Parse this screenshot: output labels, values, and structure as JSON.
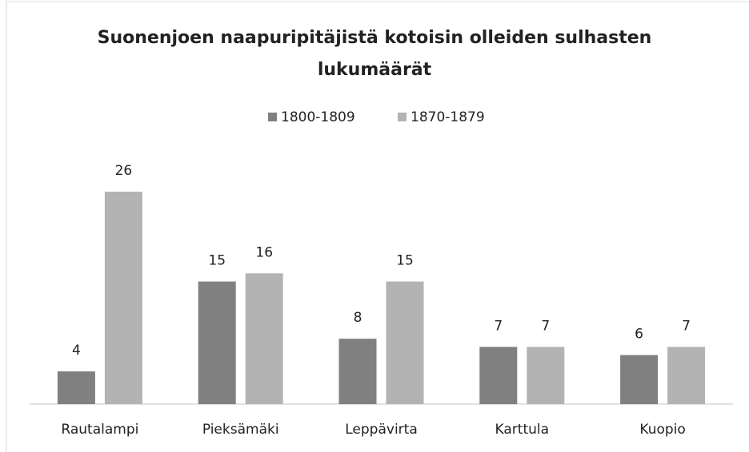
{
  "chart_data": {
    "type": "bar",
    "title": "Suonenjoen naapuripitäjistä kotoisin olleiden sulhasten lukumäärät",
    "categories": [
      "Rautalampi",
      "Pieksämäki",
      "Leppävirta",
      "Karttula",
      "Kuopio"
    ],
    "series": [
      {
        "name": "1800-1809",
        "color": "#808080",
        "values": [
          4,
          15,
          8,
          7,
          6
        ]
      },
      {
        "name": "1870-1879",
        "color": "#b3b3b3",
        "values": [
          26,
          16,
          15,
          7,
          7
        ]
      }
    ],
    "legend": "top"
  }
}
